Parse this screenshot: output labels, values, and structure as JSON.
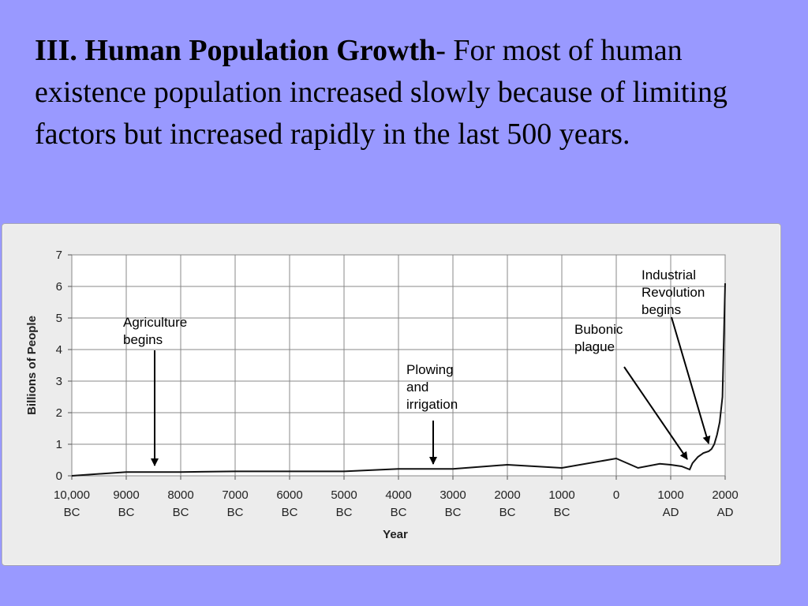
{
  "slide": {
    "heading_bold": "III.  Human Population Growth",
    "heading_rest": "- For most of human existence population increased slowly because of limiting factors but increased rapidly in the last 500 years."
  },
  "chart_data": {
    "type": "line",
    "xlabel": "Year",
    "ylabel": "Billions of People",
    "xlim": [
      -10000,
      2000
    ],
    "ylim": [
      0,
      7
    ],
    "grid": true,
    "x_ticks": [
      {
        "value": -10000,
        "line1": "10,000",
        "line2": "BC"
      },
      {
        "value": -9000,
        "line1": "9000",
        "line2": "BC"
      },
      {
        "value": -8000,
        "line1": "8000",
        "line2": "BC"
      },
      {
        "value": -7000,
        "line1": "7000",
        "line2": "BC"
      },
      {
        "value": -6000,
        "line1": "6000",
        "line2": "BC"
      },
      {
        "value": -5000,
        "line1": "5000",
        "line2": "BC"
      },
      {
        "value": -4000,
        "line1": "4000",
        "line2": "BC"
      },
      {
        "value": -3000,
        "line1": "3000",
        "line2": "BC"
      },
      {
        "value": -2000,
        "line1": "2000",
        "line2": "BC"
      },
      {
        "value": -1000,
        "line1": "1000",
        "line2": "BC"
      },
      {
        "value": 0,
        "line1": "0",
        "line2": ""
      },
      {
        "value": 1000,
        "line1": "1000",
        "line2": "AD"
      },
      {
        "value": 2000,
        "line1": "2000",
        "line2": "AD"
      }
    ],
    "y_ticks": [
      "0",
      "1",
      "2",
      "3",
      "4",
      "5",
      "6",
      "7"
    ],
    "series": [
      {
        "x": [
          -10000,
          -9000,
          -8000,
          -7000,
          -6000,
          -5000,
          -4000,
          -3000,
          -2000,
          -1000,
          0,
          400,
          800,
          1000,
          1200,
          1350,
          1400,
          1500,
          1600,
          1700,
          1750,
          1800,
          1850,
          1900,
          1950,
          2000
        ],
        "y": [
          0.0,
          0.12,
          0.12,
          0.14,
          0.14,
          0.14,
          0.22,
          0.22,
          0.35,
          0.25,
          0.55,
          0.25,
          0.38,
          0.35,
          0.3,
          0.2,
          0.4,
          0.6,
          0.72,
          0.78,
          0.85,
          1.0,
          1.3,
          1.7,
          2.5,
          6.1
        ]
      }
    ],
    "annotations": [
      {
        "lines": [
          "Agriculture",
          "begins"
        ],
        "x": -8500,
        "y": 0.3,
        "color": "#000000"
      },
      {
        "lines": [
          "Plowing",
          "and",
          "irrigation"
        ],
        "x": -3500,
        "y": 0.3,
        "color": "#000000"
      },
      {
        "lines": [
          "Bubonic",
          "plague"
        ],
        "x": 1350,
        "y": 0.45,
        "color": "#000000"
      },
      {
        "lines": [
          "Industrial",
          "Revolution",
          "begins"
        ],
        "x": 1750,
        "y": 1.0,
        "color": "#000000"
      }
    ]
  }
}
